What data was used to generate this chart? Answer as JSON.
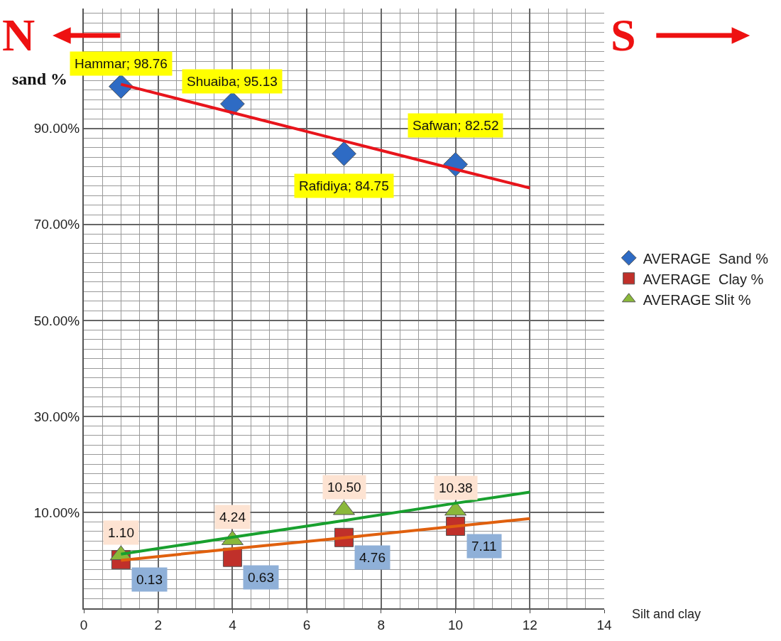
{
  "chart_data": {
    "type": "scatter",
    "ylabel": "sand %",
    "xlabel": "Silt and clay",
    "x": [
      1,
      4,
      7,
      10,
      12
    ],
    "series": [
      {
        "name": "AVERAGE  Sand %",
        "color": "#2e6bc4",
        "marker": "diamond",
        "values": [
          98.76,
          95.13,
          84.75,
          82.52,
          null
        ],
        "value_labels": [
          "Hammar; 98.76",
          "Shuaiba; 95.13",
          "Rafidiya; 84.75",
          "Safwan; 82.52",
          null
        ]
      },
      {
        "name": "AVERAGE  Clay %",
        "color": "#c0302a",
        "marker": "square",
        "values": [
          0.13,
          0.63,
          4.76,
          7.11,
          null
        ],
        "value_labels": [
          "0.13",
          "0.63",
          "4.76",
          "7.11",
          null
        ]
      },
      {
        "name": "AVERAGE Slit %",
        "color": "#8ab83a",
        "marker": "triangle",
        "values": [
          1.1,
          4.24,
          10.5,
          10.38,
          null
        ],
        "value_labels": [
          "1.10",
          "4.24",
          "10.50",
          "10.38",
          null
        ]
      },
      {
        "type": "line",
        "color": "#e8141b",
        "values": [
          99.2,
          93.3,
          87.4,
          81.5,
          77.6
        ]
      },
      {
        "type": "line",
        "color": "#e0600e",
        "values": [
          0,
          2.4,
          4.7,
          7.1,
          8.7
        ]
      },
      {
        "type": "line",
        "color": "#18a02e",
        "values": [
          1.3,
          4.8,
          8.3,
          11.9,
          14.2
        ]
      }
    ],
    "xlim": [
      0,
      14
    ],
    "xticks": [
      0,
      2,
      4,
      6,
      8,
      10,
      12,
      14
    ],
    "ylim": [
      -10,
      115
    ],
    "yticks": [
      {
        "value": 10,
        "label": "10.00%"
      },
      {
        "value": 30,
        "label": "30.00%"
      },
      {
        "value": 50,
        "label": "50.00%"
      },
      {
        "value": 70,
        "label": "70.00%"
      },
      {
        "value": 90,
        "label": "90.00%"
      }
    ],
    "grid": true,
    "legend": "right",
    "annotations": [
      "N",
      "S"
    ]
  }
}
